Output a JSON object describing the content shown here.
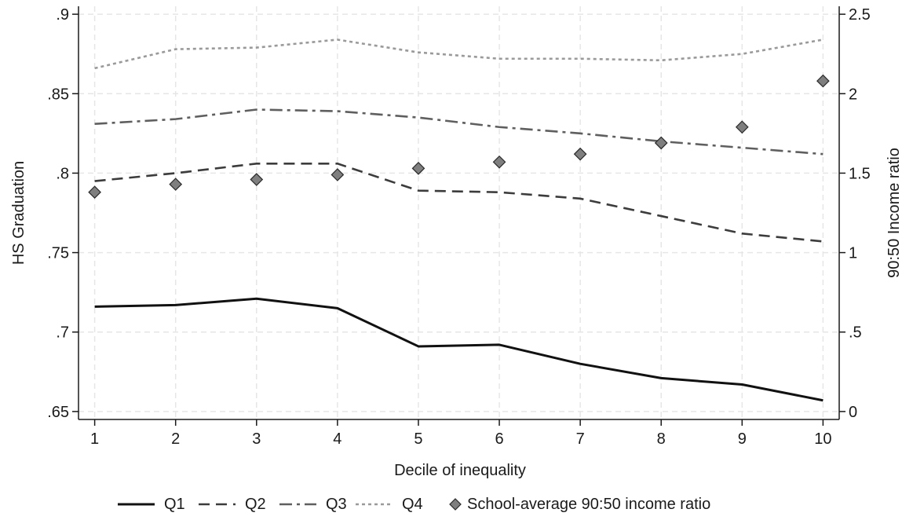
{
  "chart_data": {
    "type": "line",
    "title": "",
    "xlabel": "Decile of inequality",
    "ylabel": "HS Graduation",
    "y2label": "90:50 Income ratio",
    "x": [
      1,
      2,
      3,
      4,
      5,
      6,
      7,
      8,
      9,
      10
    ],
    "xticks": [
      "1",
      "2",
      "3",
      "4",
      "5",
      "6",
      "7",
      "8",
      "9",
      "10"
    ],
    "ylim": [
      0.645,
      0.905
    ],
    "yticks": [
      0.65,
      0.7,
      0.75,
      0.8,
      0.85,
      0.9
    ],
    "ytick_labels": [
      ".65",
      ".7",
      ".75",
      ".8",
      ".85",
      ".9"
    ],
    "y2lim": [
      -0.05,
      2.55
    ],
    "y2ticks": [
      0,
      0.5,
      1,
      1.5,
      2,
      2.5
    ],
    "y2tick_labels": [
      "0",
      ".5",
      "1",
      "1.5",
      "2",
      "2.5"
    ],
    "grid": true,
    "legend_position": "bottom",
    "series": [
      {
        "name": "Q1",
        "axis": "left",
        "style": "solid",
        "color": "#111111",
        "values": [
          0.716,
          0.717,
          0.721,
          0.715,
          0.691,
          0.692,
          0.68,
          0.671,
          0.667,
          0.657
        ]
      },
      {
        "name": "Q2",
        "axis": "left",
        "style": "dash",
        "color": "#3c3c3c",
        "values": [
          0.795,
          0.8,
          0.806,
          0.806,
          0.789,
          0.788,
          0.784,
          0.773,
          0.762,
          0.757
        ]
      },
      {
        "name": "Q3",
        "axis": "left",
        "style": "dashdot",
        "color": "#5f5f5f",
        "values": [
          0.831,
          0.834,
          0.84,
          0.839,
          0.835,
          0.829,
          0.825,
          0.82,
          0.816,
          0.812
        ]
      },
      {
        "name": "Q4",
        "axis": "left",
        "style": "dot",
        "color": "#9a9a9a",
        "values": [
          0.866,
          0.878,
          0.879,
          0.884,
          0.876,
          0.872,
          0.872,
          0.871,
          0.875,
          0.884
        ]
      },
      {
        "name": "School-average 90:50 income ratio",
        "axis": "right",
        "style": "diamond",
        "color": "#7f7f7f",
        "values": [
          1.38,
          1.43,
          1.46,
          1.49,
          1.53,
          1.57,
          1.62,
          1.69,
          1.79,
          2.08
        ]
      }
    ]
  }
}
